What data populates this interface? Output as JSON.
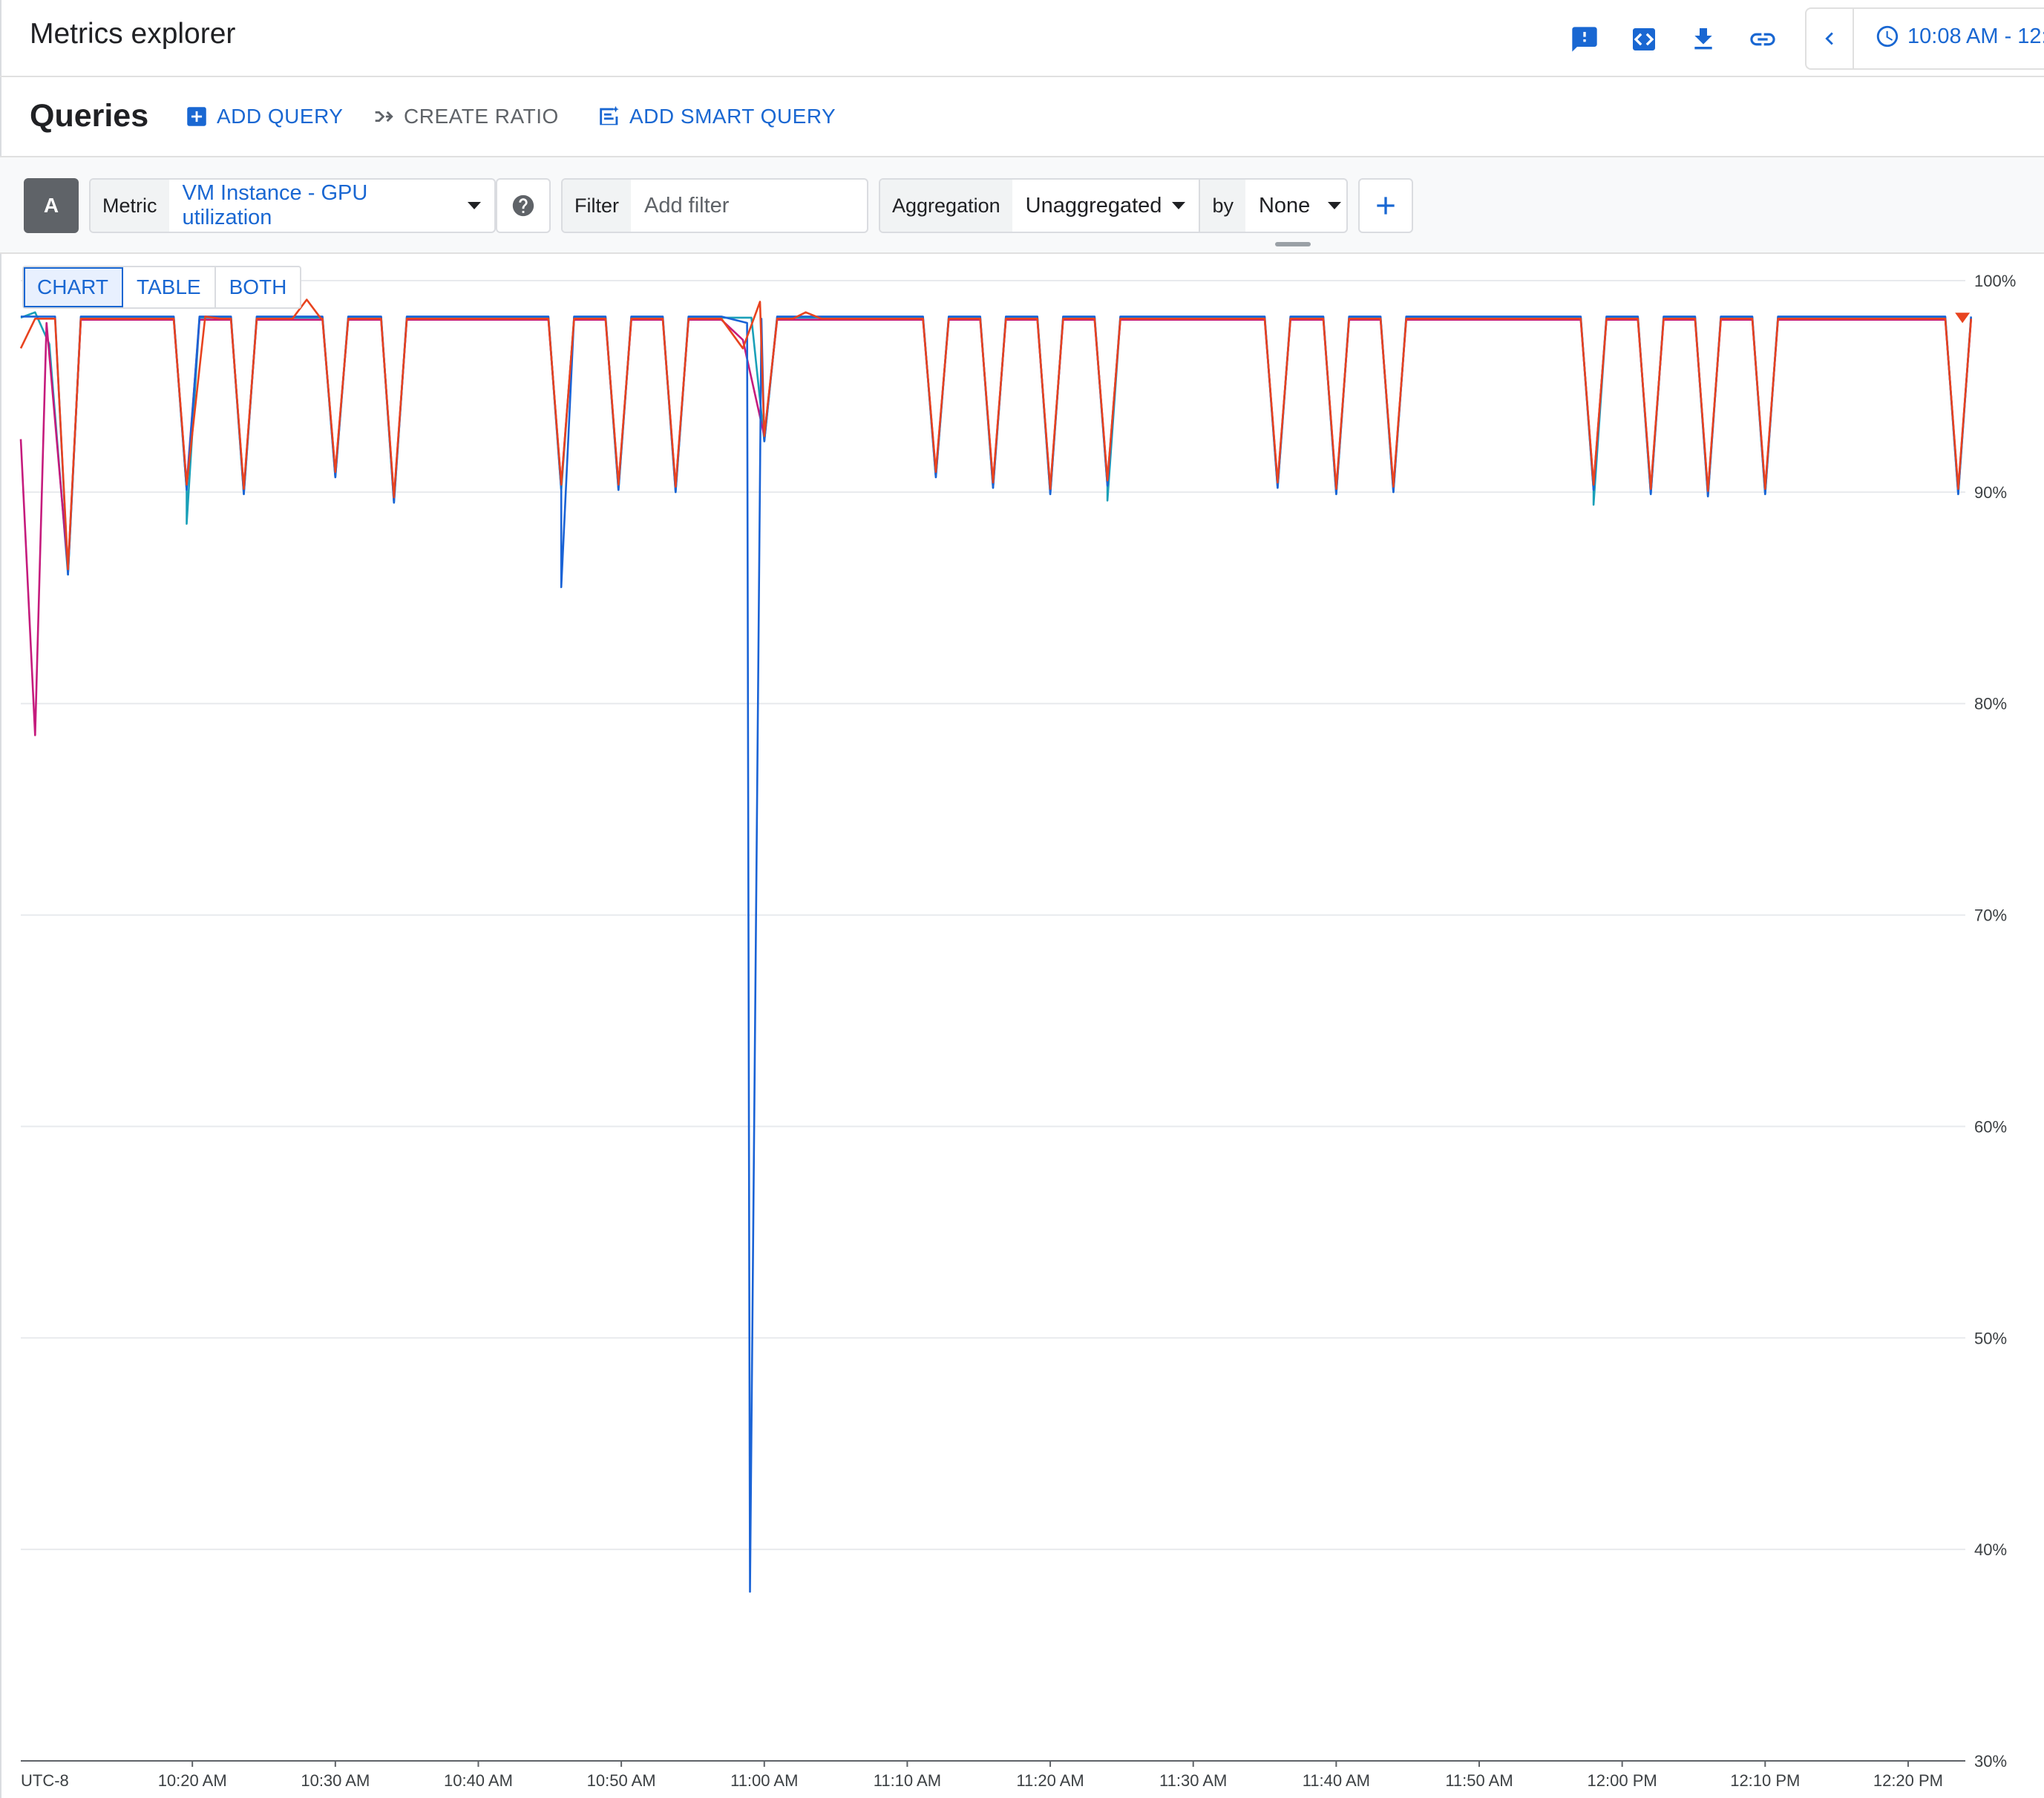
{
  "app": {
    "title": "Metrics explorer"
  },
  "toolbar": {
    "icons": [
      "feedback-icon",
      "code-icon",
      "download-icon",
      "link-icon"
    ],
    "time_range": "10:08 AM - 12:"
  },
  "queries": {
    "title": "Queries",
    "add_query": "ADD QUERY",
    "create_ratio": "CREATE RATIO",
    "add_smart_query": "ADD SMART QUERY"
  },
  "query": {
    "letter": "A",
    "metric_label": "Metric",
    "metric_value": "VM Instance - GPU utilization",
    "filter_label": "Filter",
    "filter_placeholder": "Add filter",
    "aggregation_label": "Aggregation",
    "aggregation_value": "Unaggregated",
    "by_label": "by",
    "by_value": "None"
  },
  "view": {
    "tabs": [
      "CHART",
      "TABLE",
      "BOTH"
    ],
    "active": "CHART"
  },
  "colors": {
    "accent": "#1967d2",
    "series_red": "#e8431f",
    "series_blue": "#1a63d6",
    "series_teal": "#1aa0b8",
    "series_magenta": "#c51b7d"
  },
  "chart_data": {
    "type": "line",
    "ylim": [
      30,
      100
    ],
    "y_ticks": [
      "100%",
      "90%",
      "80%",
      "70%",
      "60%",
      "50%",
      "40%",
      "30%"
    ],
    "y_tick_values": [
      100,
      90,
      80,
      70,
      60,
      50,
      40,
      30
    ],
    "timezone_label": "UTC-8",
    "x_range_minutes": [
      608,
      744
    ],
    "x_ticks": [
      "10:20 AM",
      "10:30 AM",
      "10:40 AM",
      "10:50 AM",
      "11:00 AM",
      "11:10 AM",
      "11:20 AM",
      "11:30 AM",
      "11:40 AM",
      "11:50 AM",
      "12:00 PM",
      "12:10 PM",
      "12:20 PM"
    ],
    "x_tick_minutes": [
      620,
      630,
      640,
      650,
      660,
      670,
      680,
      690,
      700,
      710,
      720,
      730,
      740
    ],
    "baseline": 98.2,
    "dips": [
      {
        "t": 611.3,
        "y": 86.2
      },
      {
        "t": 619.6,
        "y": 90.2
      },
      {
        "t": 623.6,
        "y": 90.0
      },
      {
        "t": 630.0,
        "y": 90.8
      },
      {
        "t": 634.1,
        "y": 89.6
      },
      {
        "t": 645.8,
        "y": 90.2
      },
      {
        "t": 649.8,
        "y": 90.2
      },
      {
        "t": 653.8,
        "y": 90.1
      },
      {
        "t": 660.0,
        "y": 92.5
      },
      {
        "t": 672.0,
        "y": 90.8
      },
      {
        "t": 676.0,
        "y": 90.3
      },
      {
        "t": 680.0,
        "y": 90.0
      },
      {
        "t": 684.0,
        "y": 90.4
      },
      {
        "t": 695.9,
        "y": 90.3
      },
      {
        "t": 700.0,
        "y": 90.0
      },
      {
        "t": 704.0,
        "y": 90.1
      },
      {
        "t": 718.0,
        "y": 90.2
      },
      {
        "t": 722.0,
        "y": 90.0
      },
      {
        "t": 726.0,
        "y": 89.9
      },
      {
        "t": 730.0,
        "y": 90.0
      },
      {
        "t": 743.5,
        "y": 90.0
      }
    ],
    "series": [
      {
        "color": "#1aa0b8",
        "extra": [
          {
            "t": 609.0,
            "y": 98.5
          },
          {
            "t": 610.0,
            "y": 97.0
          },
          {
            "t": 619.6,
            "y": 88.5
          },
          {
            "t": 684.0,
            "y": 89.6
          },
          {
            "t": 718.0,
            "y": 89.4
          }
        ]
      },
      {
        "color": "#c51b7d",
        "extra": [
          {
            "t": 608.0,
            "y": 92.5
          },
          {
            "t": 609.0,
            "y": 78.5
          },
          {
            "t": 609.8,
            "y": 98.0
          },
          {
            "t": 658.5,
            "y": 97.2
          }
        ]
      },
      {
        "color": "#1a63d6",
        "extra": [
          {
            "t": 645.8,
            "y": 85.5
          },
          {
            "t": 658.8,
            "y": 98.0
          },
          {
            "t": 659.0,
            "y": 38.0
          },
          {
            "t": 659.8,
            "y": 98.2
          }
        ]
      },
      {
        "color": "#e8431f",
        "extra": [
          {
            "t": 608.0,
            "y": 96.8
          },
          {
            "t": 620.9,
            "y": 98.3
          },
          {
            "t": 628.0,
            "y": 99.1
          },
          {
            "t": 628.7,
            "y": 98.2
          },
          {
            "t": 658.5,
            "y": 96.8
          },
          {
            "t": 659.7,
            "y": 99.0
          },
          {
            "t": 662.9,
            "y": 98.5
          }
        ]
      }
    ]
  }
}
